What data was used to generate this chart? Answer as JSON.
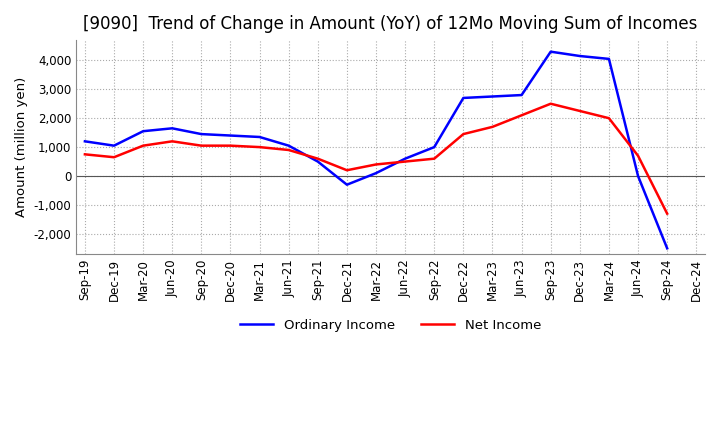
{
  "title": "[9090]  Trend of Change in Amount (YoY) of 12Mo Moving Sum of Incomes",
  "ylabel": "Amount (million yen)",
  "title_fontsize": 12,
  "label_fontsize": 9.5,
  "tick_fontsize": 8.5,
  "background_color": "#ffffff",
  "plot_bg_color": "#ffffff",
  "grid_color": "#aaaaaa",
  "ordinary_income_color": "#0000ff",
  "net_income_color": "#ff0000",
  "ylim": [
    -2700,
    4700
  ],
  "yticks": [
    -2000,
    -1000,
    0,
    1000,
    2000,
    3000,
    4000
  ],
  "x_labels": [
    "Sep-19",
    "Dec-19",
    "Mar-20",
    "Jun-20",
    "Sep-20",
    "Dec-20",
    "Mar-21",
    "Jun-21",
    "Sep-21",
    "Dec-21",
    "Mar-22",
    "Jun-22",
    "Sep-22",
    "Dec-22",
    "Mar-23",
    "Jun-23",
    "Sep-23",
    "Dec-23",
    "Mar-24",
    "Jun-24",
    "Sep-24",
    "Dec-24"
  ],
  "ordinary_income": [
    1200,
    1050,
    1550,
    1650,
    1450,
    1400,
    1350,
    1050,
    500,
    -300,
    100,
    600,
    1000,
    2700,
    2750,
    2800,
    4300,
    4150,
    4050,
    0,
    -2500,
    null
  ],
  "net_income": [
    750,
    650,
    1050,
    1200,
    1050,
    1050,
    1000,
    900,
    600,
    200,
    400,
    500,
    600,
    1450,
    1700,
    2100,
    2500,
    2250,
    2000,
    700,
    -1300,
    null
  ]
}
